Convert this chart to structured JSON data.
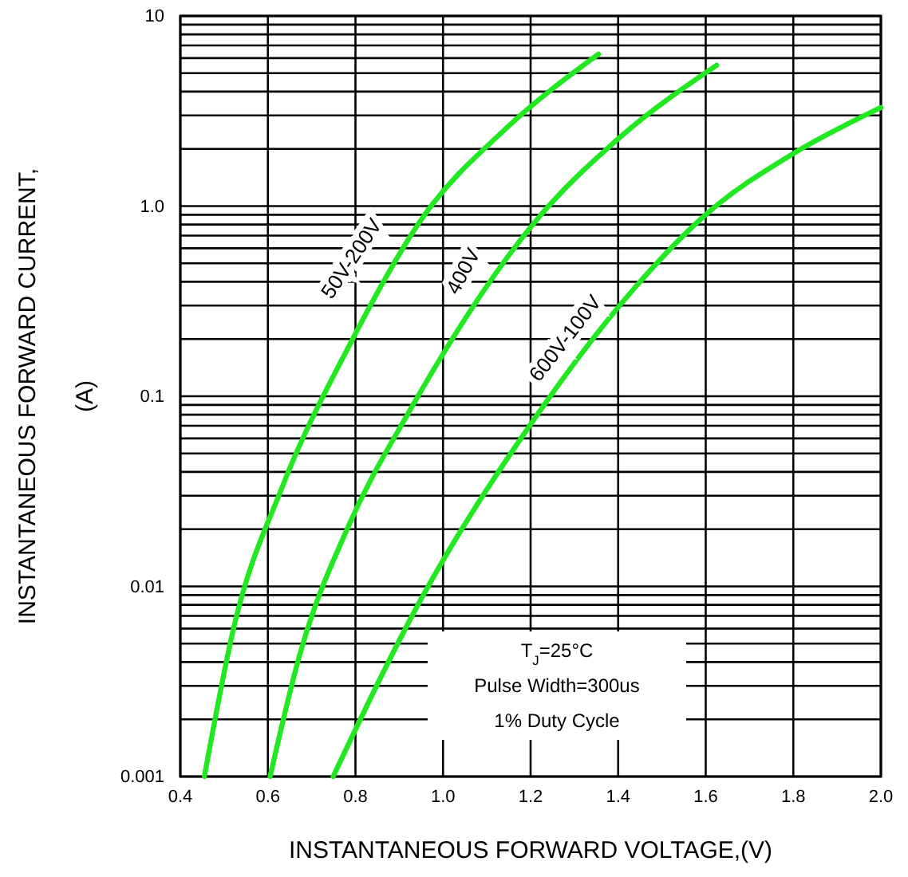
{
  "chart_data": {
    "type": "line",
    "xlabel": "INSTANTANEOUS FORWARD VOLTAGE,(V)",
    "ylabel": "INSTANTANEOUS FORWARD CURRENT,\n(A)",
    "log": "y",
    "grid": true,
    "legend": false,
    "marker": "none",
    "line_style": "solid",
    "xlim": [
      0.4,
      2.0
    ],
    "xticks": [
      0.4,
      0.6,
      0.8,
      {
        "value": 1.0,
        "label": "1.0"
      },
      1.2,
      1.4,
      1.6,
      1.8,
      {
        "value": 2.0,
        "label": "2.0"
      }
    ],
    "ylim": [
      0.001,
      10
    ],
    "yticks": [
      0.001,
      0.01,
      0.1,
      {
        "value": 1,
        "label": "1.0"
      },
      10
    ],
    "series": [
      {
        "name": "50V-200V",
        "color": "#22e822",
        "x": [
          0.455,
          0.523,
          0.632,
          0.787,
          0.955,
          1.143,
          1.355
        ],
        "values": [
          0.001,
          0.0062,
          0.033,
          0.187,
          0.88,
          2.55,
          6.3
        ]
      },
      {
        "name": "400V",
        "color": "#22e822",
        "x": [
          0.605,
          0.673,
          0.785,
          0.92,
          1.22,
          1.405,
          1.625
        ],
        "values": [
          0.001,
          0.0044,
          0.021,
          0.081,
          0.88,
          2.31,
          5.5
        ]
      },
      {
        "name": "600V-100V",
        "color": "#22e822",
        "x": [
          0.749,
          0.949,
          1.196,
          1.437,
          1.602,
          1.802,
          2.0
        ],
        "values": [
          0.001,
          0.0085,
          0.069,
          0.37,
          0.91,
          1.9,
          3.3
        ]
      }
    ],
    "annotations": [
      "T$_{J}$=25°C",
      "Pulse Width=300us",
      "1% Duty Cycle"
    ]
  }
}
